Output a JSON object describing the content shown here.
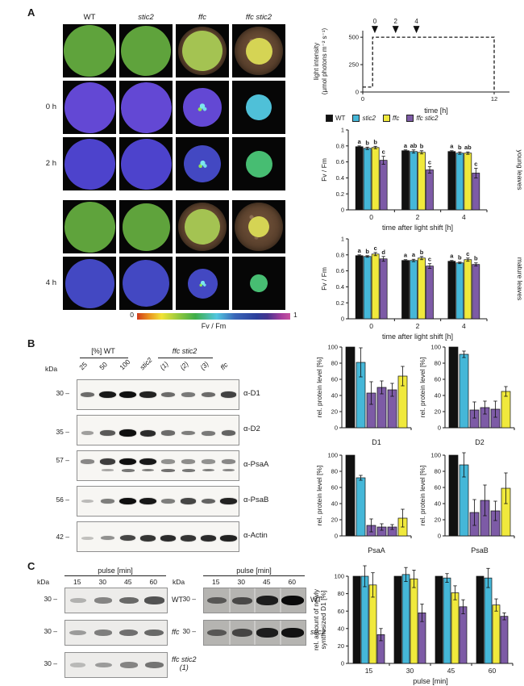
{
  "labels": {
    "a": "A",
    "b": "B",
    "c": "C"
  },
  "colors": {
    "wt": "#111111",
    "stic2": "#45b7d8",
    "ffc": "#f0e93c",
    "ffc_stic2": "#7d5ba6"
  },
  "panel_a": {
    "col_headers": [
      {
        "label": "WT",
        "italic": false
      },
      {
        "label": "stic2",
        "italic": true
      },
      {
        "label": "ffc",
        "italic": true
      },
      {
        "label": "ffc stic2",
        "italic": true
      }
    ],
    "row_labels": {
      "h0": "0 h",
      "h2": "2 h",
      "h4": "4 h"
    },
    "scale": {
      "min": "0",
      "max": "1",
      "label": "Fv / Fm"
    },
    "legend": [
      {
        "label": "WT",
        "color": "#111111",
        "italic": false
      },
      {
        "label": "stic2",
        "color": "#45b7d8",
        "italic": true
      },
      {
        "label": "ffc",
        "color": "#f0e93c",
        "italic": true
      },
      {
        "label": "ffc stic2",
        "color": "#7d5ba6",
        "italic": true
      }
    ],
    "grid": {
      "rows": [
        {
          "label": "",
          "cells": [
            {
              "plant": "green",
              "size": 0.97,
              "photo": true
            },
            {
              "plant": "green",
              "size": 0.94,
              "photo": true
            },
            {
              "plant": "palegreen",
              "size": 0.76,
              "photo": true
            },
            {
              "plant": "yellow",
              "size": 0.5,
              "photo": true
            }
          ]
        },
        {
          "label": "0 h",
          "cells": [
            {
              "plant": "violet",
              "size": 0.95
            },
            {
              "plant": "violet",
              "size": 0.95
            },
            {
              "plant": "violet",
              "size": 0.72,
              "accent": true
            },
            {
              "plant": "gc0",
              "size": 0.48
            }
          ]
        },
        {
          "label": "2 h",
          "cells": [
            {
              "plant": "blueviolet",
              "size": 0.95
            },
            {
              "plant": "blueviolet",
              "size": 0.95
            },
            {
              "plant": "blue",
              "size": 0.7,
              "accent": true
            },
            {
              "plant": "gc",
              "size": 0.5
            }
          ]
        },
        {
          "label": "",
          "cells": [
            {
              "plant": "green",
              "size": 0.95,
              "photo": true
            },
            {
              "plant": "green",
              "size": 0.9,
              "photo": true
            },
            {
              "plant": "palegreen",
              "size": 0.66,
              "photo": true
            },
            {
              "plant": "yellow",
              "size": 0.4,
              "photo": true
            }
          ]
        },
        {
          "label": "4 h",
          "cells": [
            {
              "plant": "blue",
              "size": 0.93
            },
            {
              "plant": "blue",
              "size": 0.88
            },
            {
              "plant": "blue",
              "size": 0.56,
              "accent": true
            },
            {
              "plant": "gc",
              "size": 0.34
            }
          ]
        }
      ]
    }
  },
  "panel_b": {
    "kda_label": "kDa",
    "group1_label": "[%] WT",
    "group2_label": "ffc stic2",
    "lanes": [
      {
        "label": "25",
        "italic": false
      },
      {
        "label": "50",
        "italic": false
      },
      {
        "label": "100",
        "italic": false
      },
      {
        "label": "stic2",
        "italic": true
      },
      {
        "label": "(1)",
        "italic": true
      },
      {
        "label": "(2)",
        "italic": true
      },
      {
        "label": "(3)",
        "italic": true
      },
      {
        "label": "ffc",
        "italic": true
      }
    ],
    "blots": [
      {
        "kda": "30",
        "antibody": "α-D1",
        "band_y": 0.5,
        "bands": [
          0.5,
          0.95,
          1,
          0.9,
          0.5,
          0.42,
          0.5,
          0.72
        ]
      },
      {
        "kda": "35",
        "antibody": "α-D2",
        "band_y": 0.6,
        "bands": [
          0.22,
          0.6,
          1,
          0.85,
          0.5,
          0.4,
          0.42,
          0.55
        ]
      },
      {
        "kda": "57",
        "antibody": "α-PsaA",
        "band_y": 0.36,
        "bands": [
          0.35,
          0.75,
          1,
          0.95,
          0.3,
          0.32,
          0.3,
          0.35
        ],
        "sub_y": 0.66,
        "sub": [
          0,
          0.2,
          0.5,
          0.45,
          0.55,
          0.5,
          0.45,
          0.4
        ]
      },
      {
        "kda": "56",
        "antibody": "α-PsaB",
        "band_y": 0.5,
        "bands": [
          0.08,
          0.4,
          1,
          0.95,
          0.4,
          0.7,
          0.55,
          0.9
        ]
      },
      {
        "kda": "42",
        "antibody": "α-Actin",
        "band_y": 0.55,
        "bands": [
          0.04,
          0.3,
          0.7,
          0.8,
          0.85,
          0.8,
          0.85,
          0.9
        ]
      }
    ]
  },
  "panel_c": {
    "kda_label": "kDa",
    "left": {
      "header": "pulse [min]",
      "lanes": [
        "15",
        "30",
        "45",
        "60"
      ],
      "rows": [
        {
          "kda": "30",
          "label": "WT",
          "italic": false,
          "bands": [
            0.2,
            0.5,
            0.7,
            0.85
          ]
        },
        {
          "kda": "30",
          "label": "ffc",
          "italic": true,
          "bands": [
            0.35,
            0.55,
            0.65,
            0.7
          ]
        },
        {
          "kda": "30",
          "label": "ffc stic2",
          "sub": "(1)",
          "italic": true,
          "bands": [
            0.15,
            0.35,
            0.5,
            0.62
          ]
        }
      ]
    },
    "right": {
      "header": "pulse [min]",
      "lanes": [
        "15",
        "30",
        "45",
        "60"
      ],
      "rows": [
        {
          "kda": "30",
          "label": "WT",
          "italic": false,
          "bands": [
            0.4,
            0.5,
            0.85,
            1
          ]
        },
        {
          "kda": "30",
          "label": "stic2",
          "italic": true,
          "bands": [
            0.4,
            0.55,
            0.85,
            0.95
          ]
        }
      ]
    }
  },
  "chart_data": {
    "light": {
      "type": "line",
      "style": "dashed-step",
      "path": [
        [
          0,
          45
        ],
        [
          0.9,
          45
        ],
        [
          0.9,
          500
        ],
        [
          12,
          500
        ],
        [
          12,
          0
        ]
      ],
      "xlim": [
        0,
        13.4
      ],
      "ylim": [
        0,
        560
      ],
      "yticks": [
        0,
        250,
        500
      ],
      "xticks": [
        0,
        12
      ],
      "xlabel": "time [h]",
      "ylabel_lines": [
        "light intensity",
        "(µmol photons m⁻² s⁻¹)"
      ],
      "arrows": [
        {
          "x": 1.1,
          "label": "0"
        },
        {
          "x": 3,
          "label": "2"
        },
        {
          "x": 4.9,
          "label": "4"
        }
      ]
    },
    "young": {
      "type": "bar",
      "side": "young leaves",
      "xlabel": "time after light shift [h]",
      "ylabel": "Fv / Fm",
      "ylim": [
        0,
        1
      ],
      "yticks": [
        0,
        0.2,
        0.4,
        0.6,
        0.8,
        1
      ],
      "ytick_labels": [
        "0",
        "0.2",
        "0.4",
        "0.6",
        "0.8",
        "1"
      ],
      "categories": [
        "0",
        "2",
        "4"
      ],
      "series": [
        {
          "name": "WT",
          "color": "#111111",
          "values": [
            0.79,
            0.74,
            0.73
          ],
          "errors": [
            0.01,
            0.01,
            0.01
          ],
          "letters": [
            "a",
            "a",
            "a"
          ]
        },
        {
          "name": "stic2",
          "color": "#45b7d8",
          "values": [
            0.77,
            0.73,
            0.71
          ],
          "errors": [
            0.015,
            0.02,
            0.015
          ],
          "letters": [
            "b",
            "ab",
            "b"
          ]
        },
        {
          "name": "ffc",
          "color": "#f0e93c",
          "values": [
            0.78,
            0.72,
            0.71
          ],
          "errors": [
            0.015,
            0.02,
            0.015
          ],
          "letters": [
            "b",
            "b",
            "ab"
          ]
        },
        {
          "name": "ffc stic2",
          "color": "#7d5ba6",
          "values": [
            0.62,
            0.5,
            0.46
          ],
          "errors": [
            0.05,
            0.04,
            0.06
          ],
          "letters": [
            "c",
            "c",
            "c"
          ]
        }
      ]
    },
    "mature": {
      "type": "bar",
      "side": "mature leaves",
      "xlabel": "time after light shift [h]",
      "ylabel": "Fv / Fm",
      "ylim": [
        0,
        1
      ],
      "yticks": [
        0,
        0.2,
        0.4,
        0.6,
        0.8,
        1
      ],
      "ytick_labels": [
        "0",
        "0.2",
        "0.4",
        "0.6",
        "0.8",
        "1"
      ],
      "categories": [
        "0",
        "2",
        "4"
      ],
      "series": [
        {
          "name": "WT",
          "color": "#111111",
          "values": [
            0.79,
            0.73,
            0.72
          ],
          "errors": [
            0.01,
            0.01,
            0.01
          ],
          "letters": [
            "a",
            "a",
            "a"
          ]
        },
        {
          "name": "stic2",
          "color": "#45b7d8",
          "values": [
            0.78,
            0.73,
            0.7
          ],
          "errors": [
            0.01,
            0.015,
            0.01
          ],
          "letters": [
            "b",
            "a",
            "b"
          ]
        },
        {
          "name": "ffc",
          "color": "#f0e93c",
          "values": [
            0.81,
            0.76,
            0.74
          ],
          "errors": [
            0.02,
            0.02,
            0.02
          ],
          "letters": [
            "c",
            "b",
            "c"
          ]
        },
        {
          "name": "ffc stic2",
          "color": "#7d5ba6",
          "values": [
            0.75,
            0.66,
            0.68
          ],
          "errors": [
            0.03,
            0.03,
            0.02
          ],
          "letters": [
            "d",
            "c",
            "b"
          ]
        }
      ]
    },
    "d1": {
      "type": "bar",
      "categories": [
        ""
      ],
      "xlabel": "D1",
      "ylabel": "rel. protein level [%]",
      "ylim": [
        0,
        100
      ],
      "yticks": [
        0,
        20,
        40,
        60,
        80,
        100
      ],
      "series": [
        {
          "name": "WT",
          "color": "#111111",
          "values": [
            100
          ],
          "errors": [
            0
          ]
        },
        {
          "name": "stic2",
          "color": "#45b7d8",
          "values": [
            81
          ],
          "errors": [
            18
          ]
        },
        {
          "name": "ffc stic2 (1)",
          "color": "#7d5ba6",
          "values": [
            43
          ],
          "errors": [
            14
          ]
        },
        {
          "name": "ffc stic2 (2)",
          "color": "#7d5ba6",
          "values": [
            50
          ],
          "errors": [
            8
          ]
        },
        {
          "name": "ffc stic2 (3)",
          "color": "#7d5ba6",
          "values": [
            47
          ],
          "errors": [
            8
          ]
        },
        {
          "name": "ffc",
          "color": "#f0e93c",
          "values": [
            64
          ],
          "errors": [
            12
          ]
        }
      ]
    },
    "d2": {
      "type": "bar",
      "categories": [
        ""
      ],
      "xlabel": "D2",
      "ylabel": "rel. protein level [%]",
      "ylim": [
        0,
        100
      ],
      "yticks": [
        0,
        20,
        40,
        60,
        80,
        100
      ],
      "series": [
        {
          "name": "WT",
          "color": "#111111",
          "values": [
            100
          ],
          "errors": [
            0
          ]
        },
        {
          "name": "stic2",
          "color": "#45b7d8",
          "values": [
            91
          ],
          "errors": [
            4
          ]
        },
        {
          "name": "ffc stic2 (1)",
          "color": "#7d5ba6",
          "values": [
            22
          ],
          "errors": [
            10
          ]
        },
        {
          "name": "ffc stic2 (2)",
          "color": "#7d5ba6",
          "values": [
            25
          ],
          "errors": [
            8
          ]
        },
        {
          "name": "ffc stic2 (3)",
          "color": "#7d5ba6",
          "values": [
            23
          ],
          "errors": [
            10
          ]
        },
        {
          "name": "ffc",
          "color": "#f0e93c",
          "values": [
            45
          ],
          "errors": [
            6
          ]
        }
      ]
    },
    "psaa": {
      "type": "bar",
      "categories": [
        ""
      ],
      "xlabel": "PsaA",
      "ylabel": "rel. protein level [%]",
      "ylim": [
        0,
        100
      ],
      "yticks": [
        0,
        20,
        40,
        60,
        80,
        100
      ],
      "series": [
        {
          "name": "WT",
          "color": "#111111",
          "values": [
            100
          ],
          "errors": [
            0
          ]
        },
        {
          "name": "stic2",
          "color": "#45b7d8",
          "values": [
            72
          ],
          "errors": [
            3
          ]
        },
        {
          "name": "ffc stic2 (1)",
          "color": "#7d5ba6",
          "values": [
            13
          ],
          "errors": [
            8
          ]
        },
        {
          "name": "ffc stic2 (2)",
          "color": "#7d5ba6",
          "values": [
            11
          ],
          "errors": [
            4
          ]
        },
        {
          "name": "ffc stic2 (3)",
          "color": "#7d5ba6",
          "values": [
            11
          ],
          "errors": [
            3
          ]
        },
        {
          "name": "ffc",
          "color": "#f0e93c",
          "values": [
            22
          ],
          "errors": [
            11
          ]
        }
      ]
    },
    "psab": {
      "type": "bar",
      "categories": [
        ""
      ],
      "xlabel": "PsaB",
      "ylabel": "rel. protein level [%]",
      "ylim": [
        0,
        100
      ],
      "yticks": [
        0,
        20,
        40,
        60,
        80,
        100
      ],
      "series": [
        {
          "name": "WT",
          "color": "#111111",
          "values": [
            100
          ],
          "errors": [
            0
          ]
        },
        {
          "name": "stic2",
          "color": "#45b7d8",
          "values": [
            88
          ],
          "errors": [
            15
          ]
        },
        {
          "name": "ffc stic2 (1)",
          "color": "#7d5ba6",
          "values": [
            29
          ],
          "errors": [
            16
          ]
        },
        {
          "name": "ffc stic2 (2)",
          "color": "#7d5ba6",
          "values": [
            44
          ],
          "errors": [
            19
          ]
        },
        {
          "name": "ffc stic2 (3)",
          "color": "#7d5ba6",
          "values": [
            31
          ],
          "errors": [
            12
          ]
        },
        {
          "name": "ffc",
          "color": "#f0e93c",
          "values": [
            59
          ],
          "errors": [
            19
          ]
        }
      ]
    },
    "pulse": {
      "type": "bar",
      "categories": [
        "15",
        "30",
        "45",
        "60"
      ],
      "xlabel": "pulse [min]",
      "ylabel_lines": [
        "rel. amount of newly",
        "synthesized D1 [%]"
      ],
      "ylim": [
        0,
        100
      ],
      "yticks": [
        0,
        20,
        40,
        60,
        80,
        100
      ],
      "series": [
        {
          "name": "WT",
          "color": "#111111",
          "values": [
            100,
            100,
            100,
            100
          ],
          "errors": [
            0,
            0,
            0,
            0
          ]
        },
        {
          "name": "stic2",
          "color": "#45b7d8",
          "values": [
            100,
            102,
            98,
            98
          ],
          "errors": [
            12,
            8,
            5,
            11
          ]
        },
        {
          "name": "ffc",
          "color": "#f0e93c",
          "values": [
            90,
            97,
            81,
            67
          ],
          "errors": [
            14,
            10,
            8,
            7
          ]
        },
        {
          "name": "ffc stic2",
          "color": "#7d5ba6",
          "values": [
            33,
            58,
            65,
            54
          ],
          "errors": [
            7,
            10,
            8,
            4
          ]
        }
      ]
    }
  }
}
